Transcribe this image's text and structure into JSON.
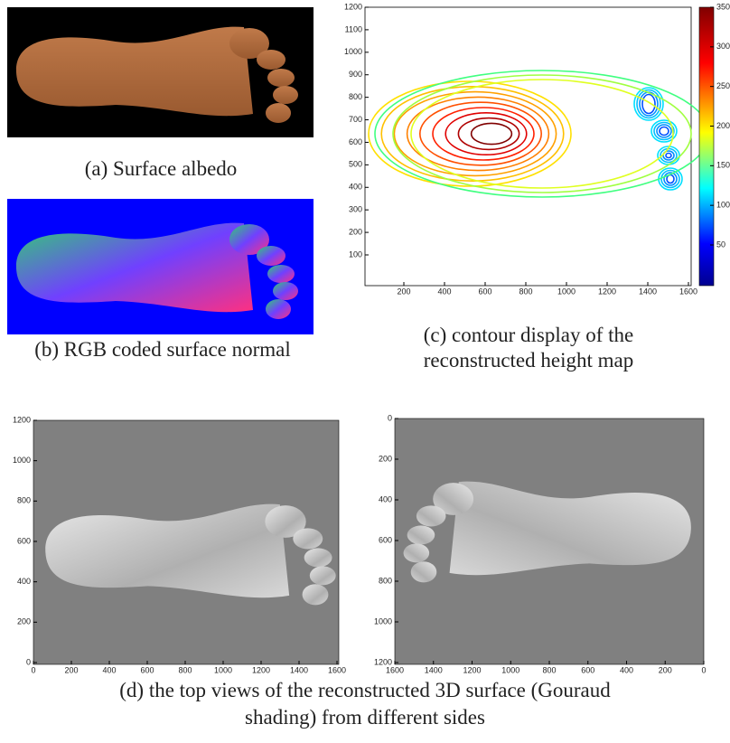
{
  "a": {
    "caption": "(a) Surface albedo"
  },
  "b": {
    "caption": "(b) RGB coded  surface normal"
  },
  "c": {
    "caption_lines": [
      "(c) contour display of the",
      "reconstructed height map"
    ],
    "xticks": [
      200,
      400,
      600,
      800,
      1000,
      1200,
      1400,
      1600
    ],
    "yticks": [
      100,
      200,
      300,
      400,
      500,
      600,
      700,
      800,
      900,
      1000,
      1100,
      1200
    ],
    "colorbar_ticks": [
      50,
      100,
      150,
      200,
      250,
      300,
      350
    ]
  },
  "d": {
    "caption_lines": [
      "(d)  the top views of the reconstructed 3D surface (Gouraud",
      "shading) from different sides"
    ],
    "left": {
      "xticks": [
        0,
        200,
        400,
        600,
        800,
        1000,
        1200,
        1400,
        1600
      ],
      "yticks": [
        0,
        200,
        400,
        600,
        800,
        1000,
        1200
      ]
    },
    "right": {
      "xticks": [
        1600,
        1400,
        1200,
        1000,
        800,
        600,
        400,
        200,
        0
      ],
      "yticks": [
        0,
        200,
        400,
        600,
        800,
        1000,
        1200
      ]
    }
  }
}
